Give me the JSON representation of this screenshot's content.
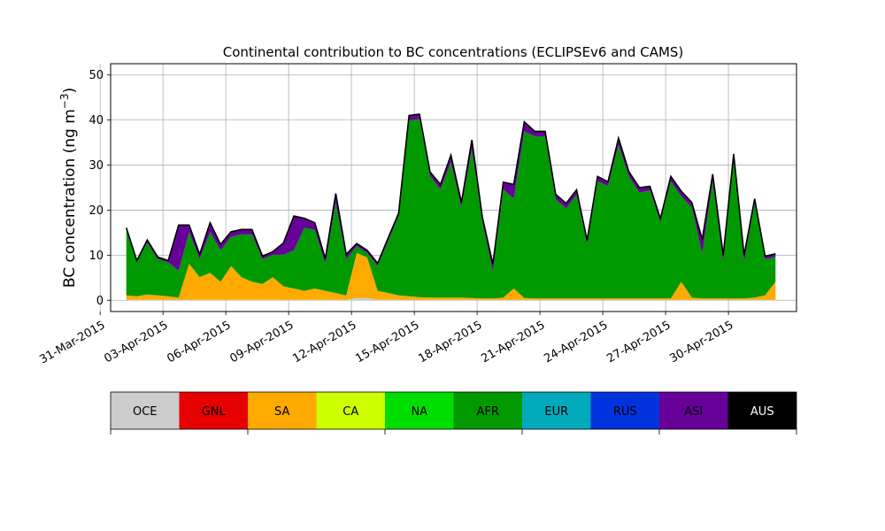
{
  "chart_data": {
    "type": "area",
    "stacked": true,
    "title": "Continental contribution to BC concentrations (ECLIPSEv6 and CAMS)",
    "ylabel": "BC concentration (ng m",
    "ylabel_superscript": "−3",
    "ylabel_close": ")",
    "xlabel": "",
    "ylim": [
      -2.5,
      52.5
    ],
    "xlim": [
      "2015-03-31T12:00",
      "2015-05-03T06:00"
    ],
    "grid": true,
    "yticks": [
      0,
      10,
      20,
      30,
      40,
      50
    ],
    "ytick_labels": [
      "0",
      "10",
      "20",
      "30",
      "40",
      "50"
    ],
    "xticks": [
      "2015-03-31",
      "2015-04-03",
      "2015-04-06",
      "2015-04-09",
      "2015-04-12",
      "2015-04-15",
      "2015-04-18",
      "2015-04-21",
      "2015-04-24",
      "2015-04-27",
      "2015-04-30"
    ],
    "xtick_labels": [
      "31-Mar-2015",
      "03-Apr-2015",
      "06-Apr-2015",
      "09-Apr-2015",
      "12-Apr-2015",
      "15-Apr-2015",
      "18-Apr-2015",
      "21-Apr-2015",
      "24-Apr-2015",
      "27-Apr-2015",
      "30-Apr-2015"
    ],
    "legend_placement": "colorbar below plot",
    "x": [
      "2015-04-01T06:00",
      "2015-04-01T18:00",
      "2015-04-02T06:00",
      "2015-04-02T18:00",
      "2015-04-03T06:00",
      "2015-04-03T18:00",
      "2015-04-04T06:00",
      "2015-04-04T18:00",
      "2015-04-05T06:00",
      "2015-04-05T18:00",
      "2015-04-06T06:00",
      "2015-04-06T18:00",
      "2015-04-07T06:00",
      "2015-04-07T18:00",
      "2015-04-08T06:00",
      "2015-04-08T18:00",
      "2015-04-09T06:00",
      "2015-04-09T18:00",
      "2015-04-10T06:00",
      "2015-04-10T18:00",
      "2015-04-11T06:00",
      "2015-04-11T18:00",
      "2015-04-12T06:00",
      "2015-04-12T18:00",
      "2015-04-13T06:00",
      "2015-04-13T18:00",
      "2015-04-14T06:00",
      "2015-04-14T18:00",
      "2015-04-15T06:00",
      "2015-04-15T18:00",
      "2015-04-16T06:00",
      "2015-04-16T18:00",
      "2015-04-17T06:00",
      "2015-04-17T18:00",
      "2015-04-18T06:00",
      "2015-04-18T18:00",
      "2015-04-19T06:00",
      "2015-04-19T18:00",
      "2015-04-20T06:00",
      "2015-04-20T18:00",
      "2015-04-21T06:00",
      "2015-04-21T18:00",
      "2015-04-22T06:00",
      "2015-04-22T18:00",
      "2015-04-23T06:00",
      "2015-04-23T18:00",
      "2015-04-24T06:00",
      "2015-04-24T18:00",
      "2015-04-25T06:00",
      "2015-04-25T18:00",
      "2015-04-26T06:00",
      "2015-04-26T18:00",
      "2015-04-27T06:00",
      "2015-04-27T18:00",
      "2015-04-28T06:00",
      "2015-04-28T18:00",
      "2015-04-29T06:00",
      "2015-04-29T18:00",
      "2015-04-30T06:00",
      "2015-04-30T18:00",
      "2015-05-01T06:00",
      "2015-05-01T18:00",
      "2015-05-02T06:00"
    ],
    "series": [
      {
        "name": "OCE",
        "color": "#cccccc",
        "values": [
          0.1,
          0.1,
          0.1,
          0.1,
          0.1,
          0.1,
          0.1,
          0.1,
          0.1,
          0.1,
          0.1,
          0.1,
          0.1,
          0.1,
          0.1,
          0.1,
          0.1,
          0.1,
          0.1,
          0.1,
          0.1,
          0.1,
          0.5,
          0.5,
          0.1,
          0.1,
          0.1,
          0.1,
          0.1,
          0.1,
          0.1,
          0.1,
          0.1,
          0.1,
          0.1,
          0.1,
          0.1,
          0.1,
          0.1,
          0.1,
          0.1,
          0.1,
          0.1,
          0.1,
          0.1,
          0.1,
          0.1,
          0.1,
          0.1,
          0.1,
          0.1,
          0.1,
          0.1,
          0.1,
          0.1,
          0.1,
          0.1,
          0.1,
          0.1,
          0.1,
          0.1,
          0.1,
          0.1
        ]
      },
      {
        "name": "GNL",
        "color": "#e60000",
        "values": [
          0.0,
          0.0,
          0.0,
          0.0,
          0.0,
          0.0,
          0.0,
          0.0,
          0.0,
          0.0,
          0.0,
          0.0,
          0.0,
          0.0,
          0.0,
          0.0,
          0.0,
          0.0,
          0.0,
          0.0,
          0.0,
          0.0,
          0.0,
          0.0,
          0.0,
          0.0,
          0.0,
          0.0,
          0.0,
          0.0,
          0.0,
          0.0,
          0.0,
          0.0,
          0.0,
          0.0,
          0.0,
          0.0,
          0.0,
          0.0,
          0.0,
          0.0,
          0.0,
          0.0,
          0.0,
          0.0,
          0.0,
          0.0,
          0.0,
          0.0,
          0.0,
          0.0,
          0.0,
          0.0,
          0.0,
          0.0,
          0.0,
          0.0,
          0.0,
          0.0,
          0.0,
          0.0,
          0.0
        ]
      },
      {
        "name": "SA",
        "color": "#ffaa00",
        "values": [
          1.0,
          0.8,
          1.2,
          1.0,
          0.8,
          0.5,
          8.0,
          5.0,
          6.0,
          4.0,
          7.5,
          5.0,
          4.0,
          3.5,
          5.0,
          3.0,
          2.5,
          2.0,
          2.5,
          2.0,
          1.5,
          1.0,
          10.0,
          9.0,
          2.0,
          1.5,
          1.0,
          0.8,
          0.6,
          0.5,
          0.5,
          0.5,
          0.5,
          0.4,
          0.3,
          0.3,
          0.5,
          2.5,
          0.4,
          0.3,
          0.3,
          0.3,
          0.3,
          0.3,
          0.3,
          0.3,
          0.3,
          0.3,
          0.3,
          0.3,
          0.3,
          0.3,
          0.3,
          4.0,
          0.5,
          0.3,
          0.3,
          0.3,
          0.3,
          0.3,
          0.5,
          1.0,
          4.0
        ]
      },
      {
        "name": "CA",
        "color": "#ccff00",
        "values": [
          0.0,
          0.0,
          0.0,
          0.0,
          0.0,
          0.0,
          0.0,
          0.0,
          0.0,
          0.0,
          0.0,
          0.0,
          0.0,
          0.0,
          0.0,
          0.0,
          0.0,
          0.0,
          0.0,
          0.0,
          0.0,
          0.0,
          0.0,
          0.0,
          0.0,
          0.0,
          0.0,
          0.0,
          0.0,
          0.0,
          0.0,
          0.0,
          0.0,
          0.0,
          0.0,
          0.0,
          0.0,
          0.0,
          0.0,
          0.0,
          0.0,
          0.0,
          0.0,
          0.0,
          0.0,
          0.0,
          0.0,
          0.0,
          0.0,
          0.0,
          0.0,
          0.0,
          0.0,
          0.0,
          0.0,
          0.0,
          0.0,
          0.0,
          0.0,
          0.0,
          0.0,
          0.0,
          0.0
        ]
      },
      {
        "name": "NA",
        "color": "#00dd00",
        "values": [
          0.0,
          0.0,
          0.0,
          0.0,
          0.0,
          0.0,
          0.0,
          0.0,
          0.0,
          0.0,
          0.0,
          0.0,
          0.0,
          0.0,
          0.0,
          0.0,
          0.0,
          0.0,
          0.0,
          0.0,
          0.0,
          0.0,
          0.0,
          0.0,
          0.0,
          0.0,
          0.0,
          0.0,
          0.0,
          0.0,
          0.0,
          0.0,
          0.0,
          0.0,
          0.0,
          0.0,
          0.0,
          0.0,
          0.0,
          0.0,
          0.0,
          0.0,
          0.0,
          0.0,
          0.0,
          0.0,
          0.0,
          0.0,
          0.0,
          0.0,
          0.0,
          0.0,
          0.0,
          0.0,
          0.0,
          0.0,
          0.0,
          0.0,
          0.0,
          0.0,
          0.0,
          0.0,
          0.0
        ]
      },
      {
        "name": "AFR",
        "color": "#009900",
        "values": [
          14.5,
          7.5,
          11.5,
          8.0,
          7.5,
          6.0,
          7.0,
          4.0,
          9.0,
          7.0,
          6.5,
          9.5,
          10.5,
          5.5,
          5.0,
          7.0,
          8.5,
          14.0,
          13.0,
          6.0,
          20.0,
          8.0,
          1.5,
          1.0,
          5.5,
          11.5,
          17.5,
          39.0,
          39.5,
          27.0,
          24.0,
          30.0,
          20.0,
          33.0,
          17.0,
          6.0,
          24.0,
          20.0,
          37.0,
          36.0,
          36.0,
          22.0,
          20.0,
          23.0,
          12.0,
          26.0,
          25.0,
          34.0,
          27.0,
          23.5,
          24.0,
          17.0,
          26.0,
          19.0,
          20.0,
          10.0,
          26.0,
          8.0,
          31.0,
          8.0,
          21.0,
          8.0,
          5.5
        ]
      },
      {
        "name": "EUR",
        "color": "#00aabb",
        "values": [
          0.0,
          0.0,
          0.0,
          0.0,
          0.0,
          0.0,
          0.0,
          0.0,
          0.0,
          0.0,
          0.0,
          0.0,
          0.0,
          0.0,
          0.0,
          0.0,
          0.0,
          0.0,
          0.0,
          0.0,
          0.0,
          0.0,
          0.0,
          0.0,
          0.0,
          0.0,
          0.0,
          0.0,
          0.0,
          0.0,
          0.0,
          0.0,
          0.0,
          0.0,
          0.0,
          0.0,
          0.0,
          0.0,
          0.0,
          0.0,
          0.0,
          0.0,
          0.0,
          0.0,
          0.0,
          0.0,
          0.0,
          0.0,
          0.0,
          0.0,
          0.0,
          0.0,
          0.0,
          0.0,
          0.0,
          0.0,
          0.0,
          0.0,
          0.0,
          0.0,
          0.0,
          0.0,
          0.0
        ]
      },
      {
        "name": "RUS",
        "color": "#0033dd",
        "values": [
          0.0,
          0.0,
          0.0,
          0.0,
          0.0,
          0.0,
          0.0,
          0.0,
          0.0,
          0.0,
          0.0,
          0.0,
          0.0,
          0.0,
          0.0,
          0.0,
          0.0,
          0.0,
          0.0,
          0.0,
          0.0,
          0.0,
          0.0,
          0.0,
          0.0,
          0.0,
          0.0,
          0.0,
          0.0,
          0.0,
          0.0,
          0.0,
          0.0,
          0.0,
          0.0,
          0.0,
          0.0,
          0.0,
          0.0,
          0.0,
          0.0,
          0.0,
          0.0,
          0.0,
          0.0,
          0.0,
          0.0,
          0.0,
          0.0,
          0.0,
          0.0,
          0.0,
          0.0,
          0.0,
          0.0,
          0.0,
          0.0,
          0.0,
          0.0,
          0.0,
          0.0,
          0.0,
          0.0
        ]
      },
      {
        "name": "ASI",
        "color": "#660099",
        "values": [
          0.4,
          0.3,
          0.5,
          0.4,
          0.3,
          10.0,
          1.5,
          1.0,
          2.0,
          1.2,
          1.0,
          1.0,
          1.0,
          0.6,
          0.6,
          2.5,
          7.5,
          2.0,
          1.5,
          1.0,
          2.0,
          1.0,
          0.5,
          0.5,
          0.5,
          0.6,
          0.6,
          1.0,
          1.0,
          0.8,
          1.0,
          1.5,
          1.0,
          2.0,
          1.0,
          1.5,
          1.5,
          3.0,
          2.0,
          1.0,
          1.0,
          1.0,
          1.0,
          1.0,
          0.8,
          1.0,
          0.8,
          1.5,
          1.0,
          1.0,
          0.8,
          0.6,
          1.0,
          1.0,
          1.0,
          3.0,
          1.5,
          1.5,
          1.0,
          1.5,
          0.8,
          0.6,
          0.6
        ]
      },
      {
        "name": "AUS",
        "color": "#000000",
        "values": [
          0.1,
          0.1,
          0.1,
          0.1,
          0.1,
          0.1,
          0.1,
          0.1,
          0.1,
          0.1,
          0.1,
          0.1,
          0.1,
          0.1,
          0.1,
          0.1,
          0.1,
          0.1,
          0.1,
          0.1,
          0.1,
          0.1,
          0.1,
          0.1,
          0.1,
          0.1,
          0.1,
          0.1,
          0.1,
          0.1,
          0.1,
          0.1,
          0.1,
          0.1,
          0.1,
          0.1,
          0.1,
          0.1,
          0.1,
          0.1,
          0.1,
          0.1,
          0.1,
          0.1,
          0.1,
          0.1,
          0.1,
          0.1,
          0.1,
          0.1,
          0.1,
          0.1,
          0.1,
          0.1,
          0.1,
          0.1,
          0.1,
          0.1,
          0.1,
          0.1,
          0.1,
          0.1,
          0.1
        ]
      }
    ]
  }
}
